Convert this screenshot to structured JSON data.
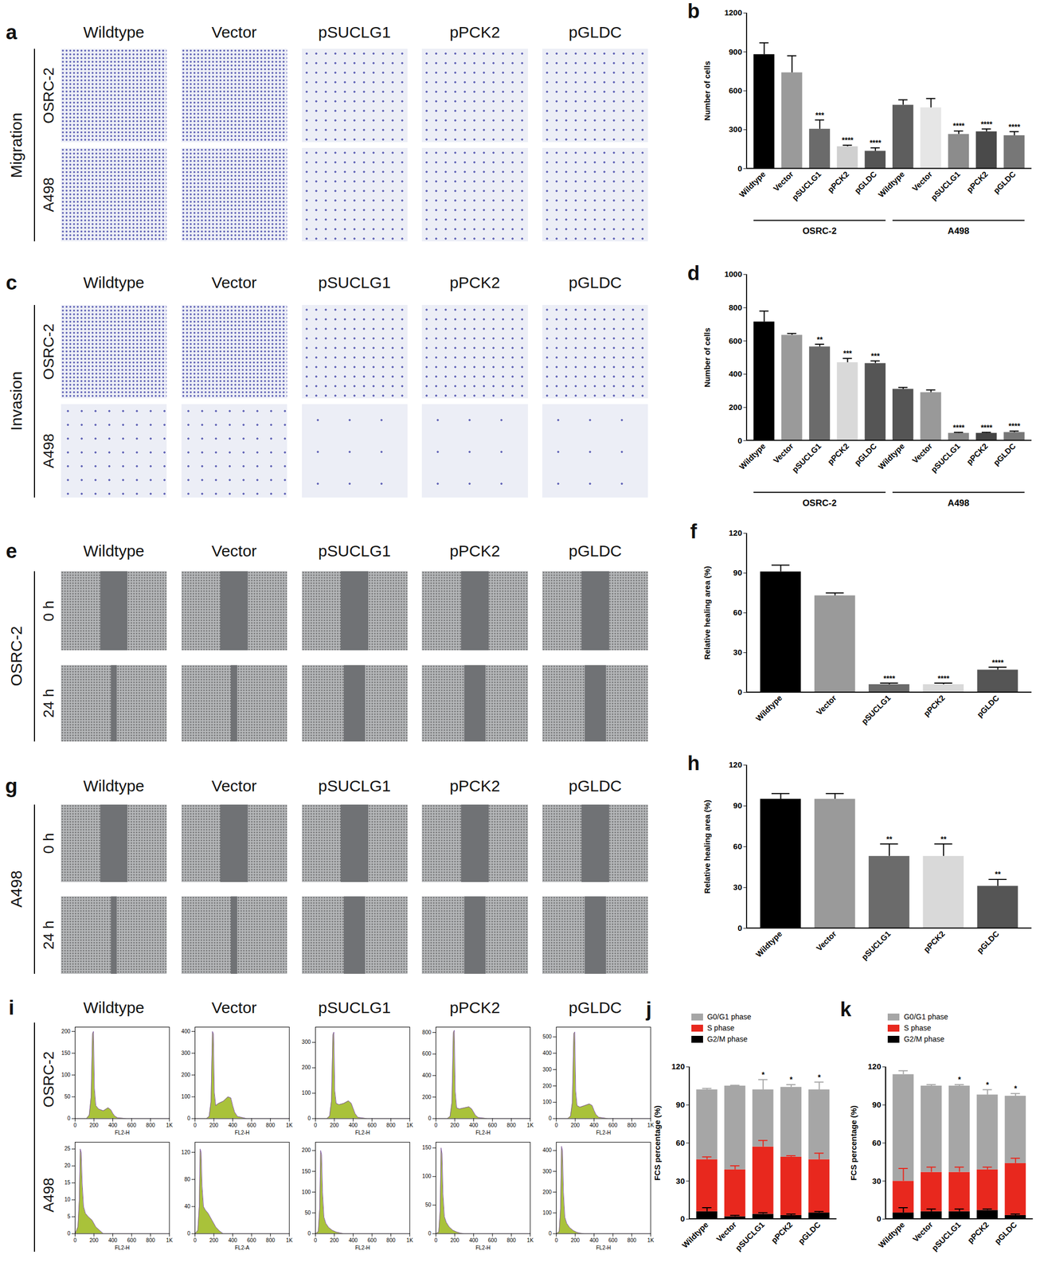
{
  "image_grids": [
    {
      "label": "a",
      "type": "stain",
      "side_label": "Migration",
      "columns": [
        "Wildtype",
        "Vector",
        "pSUCLG1",
        "pPCK2",
        "pGLDC"
      ],
      "rows": [
        "OSRC-2",
        "A498"
      ]
    },
    {
      "label": "c",
      "type": "stain",
      "side_label": "Invasion",
      "columns": [
        "Wildtype",
        "Vector",
        "pSUCLG1",
        "pPCK2",
        "pGLDC"
      ],
      "rows": [
        "OSRC-2",
        "A498"
      ]
    },
    {
      "label": "e",
      "type": "scratch",
      "side_label": "OSRC-2",
      "columns": [
        "Wildtype",
        "Vector",
        "pSUCLG1",
        "pPCK2",
        "pGLDC"
      ],
      "rows": [
        "0 h",
        "24 h"
      ]
    },
    {
      "label": "g",
      "type": "scratch",
      "side_label": "A498",
      "columns": [
        "Wildtype",
        "Vector",
        "pSUCLG1",
        "pPCK2",
        "pGLDC"
      ],
      "rows": [
        "0 h",
        "24 h"
      ]
    }
  ],
  "histogram_grid": {
    "label": "i",
    "columns": [
      "Wildtype",
      "Vector",
      "pSUCLG1",
      "pPCK2",
      "pGLDC"
    ],
    "rows": [
      "OSRC-2",
      "A498"
    ],
    "charts": [
      {
        "type": "area",
        "x_label": "FL2-H",
        "color": "#a9c23a",
        "x": [
          0,
          120,
          150,
          170,
          185,
          195,
          205,
          220,
          250,
          300,
          350,
          380,
          400,
          420,
          450,
          550,
          1000
        ],
        "values": [
          0,
          0,
          8,
          50,
          195,
          200,
          70,
          30,
          22,
          18,
          25,
          20,
          12,
          6,
          2,
          0,
          0
        ],
        "xlim": [
          0,
          1000
        ],
        "xticks": [
          0,
          200,
          400,
          600,
          800,
          {
            "value": 1000,
            "label": "1K"
          }
        ],
        "ylim": [
          0,
          210
        ],
        "yticks": [
          0,
          50,
          100,
          150,
          200
        ]
      },
      {
        "type": "area",
        "x_label": "FL2-H",
        "color": "#a9c23a",
        "x": [
          0,
          120,
          150,
          170,
          185,
          195,
          205,
          220,
          250,
          300,
          350,
          380,
          400,
          420,
          450,
          550,
          1000
        ],
        "values": [
          0,
          0,
          10,
          80,
          400,
          390,
          120,
          60,
          70,
          80,
          100,
          95,
          60,
          30,
          10,
          0,
          0
        ],
        "xlim": [
          0,
          1000
        ],
        "xticks": [
          0,
          200,
          400,
          600,
          800,
          {
            "value": 1000,
            "label": "1K"
          }
        ],
        "ylim": [
          0,
          420
        ],
        "yticks": [
          0,
          100,
          200,
          300,
          400
        ]
      },
      {
        "type": "area",
        "x_label": "FL2-H",
        "color": "#a9c23a",
        "x": [
          0,
          120,
          150,
          170,
          185,
          195,
          205,
          220,
          250,
          300,
          350,
          380,
          400,
          420,
          450,
          550,
          1000
        ],
        "values": [
          0,
          0,
          10,
          70,
          330,
          340,
          110,
          60,
          55,
          60,
          70,
          60,
          40,
          20,
          5,
          0,
          0
        ],
        "xlim": [
          0,
          1000
        ],
        "xticks": [
          0,
          200,
          400,
          600,
          800,
          {
            "value": 1000,
            "label": "1K"
          }
        ],
        "ylim": [
          0,
          360
        ],
        "yticks": [
          0,
          100,
          200,
          300
        ]
      },
      {
        "type": "area",
        "x_label": "FL2-H",
        "color": "#a9c23a",
        "x": [
          0,
          120,
          150,
          170,
          185,
          195,
          205,
          220,
          250,
          300,
          350,
          380,
          400,
          420,
          450,
          550,
          1000
        ],
        "values": [
          0,
          0,
          20,
          150,
          800,
          820,
          250,
          100,
          90,
          100,
          110,
          90,
          60,
          30,
          10,
          0,
          0
        ],
        "xlim": [
          0,
          1000
        ],
        "xticks": [
          0,
          200,
          400,
          600,
          800,
          {
            "value": 1000,
            "label": "1K"
          }
        ],
        "ylim": [
          0,
          850
        ],
        "yticks": [
          0,
          200,
          400,
          600,
          800
        ]
      },
      {
        "type": "area",
        "x_label": "FL2-H",
        "color": "#a9c23a",
        "x": [
          0,
          120,
          150,
          170,
          185,
          195,
          205,
          220,
          250,
          300,
          350,
          380,
          400,
          420,
          450,
          550,
          1000
        ],
        "values": [
          0,
          0,
          15,
          100,
          520,
          530,
          170,
          80,
          70,
          80,
          90,
          80,
          50,
          25,
          8,
          0,
          0
        ],
        "xlim": [
          0,
          1000
        ],
        "xticks": [
          0,
          200,
          400,
          600,
          800,
          {
            "value": 1000,
            "label": "1K"
          }
        ],
        "ylim": [
          0,
          560
        ],
        "yticks": [
          0,
          100,
          200,
          300,
          400,
          500
        ]
      },
      {
        "type": "area",
        "x_label": "FL2-H",
        "color": "#a9c23a",
        "x": [
          0,
          30,
          45,
          55,
          65,
          75,
          90,
          110,
          140,
          180,
          220,
          260,
          300,
          1000
        ],
        "values": [
          0,
          2,
          10,
          25,
          24,
          15,
          8,
          6,
          5,
          4,
          2,
          1,
          0,
          0
        ],
        "xlim": [
          0,
          1000
        ],
        "xticks": [
          0,
          200,
          400,
          600,
          800,
          {
            "value": 1000,
            "label": "1K"
          }
        ],
        "ylim": [
          0,
          27
        ],
        "yticks": [
          0,
          5,
          10,
          15,
          20,
          25
        ]
      },
      {
        "type": "area",
        "x_label": "FL2-A",
        "color": "#a9c23a",
        "x": [
          0,
          30,
          45,
          55,
          65,
          75,
          90,
          110,
          140,
          180,
          220,
          260,
          300,
          1000
        ],
        "values": [
          0,
          5,
          40,
          125,
          120,
          70,
          40,
          35,
          30,
          20,
          10,
          4,
          0,
          0
        ],
        "xlim": [
          0,
          1000
        ],
        "xticks": [
          0,
          200,
          400,
          600,
          800,
          {
            "value": 1000,
            "label": "1K"
          }
        ],
        "ylim": [
          0,
          135
        ],
        "yticks": [
          0,
          40,
          80,
          120
        ]
      },
      {
        "type": "area",
        "x_label": "FL2-H",
        "color": "#a9c23a",
        "x": [
          0,
          30,
          45,
          55,
          65,
          75,
          90,
          110,
          140,
          180,
          220,
          260,
          300,
          1000
        ],
        "values": [
          0,
          5,
          60,
          200,
          190,
          100,
          40,
          25,
          15,
          8,
          4,
          2,
          0,
          0
        ],
        "xlim": [
          0,
          1000
        ],
        "xticks": [
          0,
          200,
          400,
          600,
          800,
          {
            "value": 1000,
            "label": "1K"
          }
        ],
        "ylim": [
          0,
          220
        ],
        "yticks": [
          0,
          50,
          100,
          150,
          200
        ]
      },
      {
        "type": "area",
        "x_label": "FL2-H",
        "color": "#a9c23a",
        "x": [
          0,
          30,
          45,
          55,
          65,
          75,
          90,
          110,
          140,
          180,
          220,
          260,
          300,
          1000
        ],
        "values": [
          0,
          3,
          40,
          150,
          140,
          70,
          30,
          20,
          12,
          6,
          3,
          1,
          0,
          0
        ],
        "xlim": [
          0,
          1000
        ],
        "xticks": [
          0,
          200,
          400,
          600,
          800,
          {
            "value": 1000,
            "label": "1K"
          }
        ],
        "ylim": [
          0,
          160
        ],
        "yticks": [
          0,
          50,
          100,
          150
        ]
      },
      {
        "type": "area",
        "x_label": "FL2-H",
        "color": "#a9c23a",
        "x": [
          0,
          30,
          45,
          55,
          65,
          75,
          90,
          110,
          140,
          180,
          220,
          260,
          300,
          1000
        ],
        "values": [
          0,
          10,
          120,
          420,
          400,
          200,
          80,
          50,
          30,
          15,
          6,
          2,
          0,
          0
        ],
        "xlim": [
          0,
          1000
        ],
        "xticks": [
          0,
          200,
          400,
          600,
          800,
          {
            "value": 1000,
            "label": "1K"
          }
        ],
        "ylim": [
          0,
          440
        ],
        "yticks": [
          0,
          100,
          200,
          300,
          400
        ]
      }
    ]
  },
  "chart_data": [
    {
      "type": "bar",
      "title": "b",
      "y_label": "Number of cells",
      "categories": [
        "Wildtype",
        "Vector",
        "pSUCLG1",
        "pPCK2",
        "pGLDC",
        "Wildtype",
        "Vector",
        "pSUCLG1",
        "pPCK2",
        "pGLDC"
      ],
      "groups": [
        "OSRC-2",
        "OSRC-2",
        "OSRC-2",
        "OSRC-2",
        "OSRC-2",
        "A498",
        "A498",
        "A498",
        "A498",
        "A498"
      ],
      "values": [
        880,
        740,
        305,
        170,
        135,
        490,
        470,
        265,
        285,
        255
      ],
      "errors": [
        90,
        130,
        70,
        10,
        25,
        40,
        70,
        25,
        20,
        30
      ],
      "significance": [
        null,
        null,
        "***",
        "****",
        "****",
        null,
        null,
        "****",
        "****",
        "****"
      ],
      "colors": [
        "#000000",
        "#9a9a9a",
        "#6b6b6b",
        "#d0d0d0",
        "#555555",
        "#5e5e5e",
        "#e6e6e6",
        "#8c8c8c",
        "#4a4a4a",
        "#777777"
      ],
      "ylim": [
        0,
        1200
      ],
      "yticks": [
        0,
        300,
        600,
        900,
        1200
      ]
    },
    {
      "type": "bar",
      "title": "d",
      "y_label": "Number of cells",
      "categories": [
        "Wildtype",
        "Vector",
        "pSUCLG1",
        "pPCK2",
        "pGLDC",
        "Wildtype",
        "Vector",
        "pSUCLG1",
        "pPCK2",
        "pGLDC"
      ],
      "groups": [
        "OSRC-2",
        "OSRC-2",
        "OSRC-2",
        "OSRC-2",
        "OSRC-2",
        "A498",
        "A498",
        "A498",
        "A498",
        "A498"
      ],
      "values": [
        715,
        635,
        565,
        470,
        465,
        310,
        290,
        45,
        45,
        50
      ],
      "errors": [
        65,
        10,
        15,
        25,
        15,
        10,
        15,
        5,
        5,
        8
      ],
      "significance": [
        null,
        null,
        "**",
        "***",
        "***",
        null,
        null,
        "****",
        "****",
        "****"
      ],
      "colors": [
        "#000000",
        "#9a9a9a",
        "#6b6b6b",
        "#d9d9d9",
        "#555555",
        "#555555",
        "#999999",
        "#888888",
        "#444444",
        "#777777"
      ],
      "ylim": [
        0,
        1000
      ],
      "yticks": [
        0,
        200,
        400,
        600,
        800,
        1000
      ]
    },
    {
      "type": "bar",
      "title": "f",
      "y_label": "Relative healing area (%)",
      "categories": [
        "Wildtype",
        "Vector",
        "pSUCLG1",
        "pPCK2",
        "pGLDC"
      ],
      "values": [
        91,
        73,
        6,
        6,
        17
      ],
      "errors": [
        5,
        2,
        1,
        1,
        2
      ],
      "significance": [
        null,
        null,
        "****",
        "****",
        "****"
      ],
      "colors": [
        "#000000",
        "#9a9a9a",
        "#6b6b6b",
        "#d9d9d9",
        "#555555"
      ],
      "ylim": [
        0,
        120
      ],
      "yticks": [
        0,
        30,
        60,
        90,
        120
      ]
    },
    {
      "type": "bar",
      "title": "h",
      "y_label": "Relative healing area (%)",
      "categories": [
        "Wildtype",
        "Vector",
        "pSUCLG1",
        "pPCK2",
        "pGLDC"
      ],
      "values": [
        95,
        95,
        53,
        53,
        31
      ],
      "errors": [
        4,
        4,
        9,
        9,
        5
      ],
      "significance": [
        null,
        null,
        "**",
        "**",
        "**"
      ],
      "colors": [
        "#000000",
        "#9a9a9a",
        "#6b6b6b",
        "#d9d9d9",
        "#555555"
      ],
      "ylim": [
        0,
        120
      ],
      "yticks": [
        0,
        30,
        60,
        90,
        120
      ]
    },
    {
      "type": "bar",
      "stacked": true,
      "title": "j",
      "y_label": "FCS percentage (%)",
      "legend": "top-left",
      "categories": [
        "Wildtype",
        "Vector",
        "pSUCLG1",
        "pPCK2",
        "pGLDC"
      ],
      "series": [
        {
          "name": "G0/G1 phase",
          "color": "#a6a6a6",
          "values": [
            55,
            66,
            45,
            55,
            55
          ],
          "errors": [
            1,
            0.5,
            8,
            2,
            6
          ]
        },
        {
          "name": "S phase",
          "color": "#e8281e",
          "values": [
            41,
            37,
            53,
            46,
            42
          ],
          "errors": [
            2,
            3,
            5,
            1,
            5
          ]
        },
        {
          "name": "G2/M phase",
          "color": "#000000",
          "values": [
            6,
            2,
            4,
            3,
            5
          ],
          "errors": [
            3,
            1,
            1,
            1,
            1
          ]
        }
      ],
      "significance": [
        null,
        null,
        "*",
        "*",
        "*"
      ],
      "ylim": [
        0,
        120
      ],
      "yticks": [
        0,
        30,
        60,
        90,
        120
      ]
    },
    {
      "type": "bar",
      "stacked": true,
      "title": "k",
      "y_label": "FCS percentage (%)",
      "legend": "top-left",
      "categories": [
        "Wildtype",
        "Vector",
        "pSUCLG1",
        "pPCK2",
        "pGLDC"
      ],
      "series": [
        {
          "name": "G0/G1 phase",
          "color": "#a6a6a6",
          "values": [
            84,
            68,
            68,
            59,
            53
          ],
          "errors": [
            3,
            1,
            1,
            4,
            2
          ]
        },
        {
          "name": "S phase",
          "color": "#e8281e",
          "values": [
            25,
            31,
            31,
            32,
            41
          ],
          "errors": [
            10,
            4,
            4,
            2,
            4
          ]
        },
        {
          "name": "G2/M phase",
          "color": "#000000",
          "values": [
            5,
            6,
            6,
            7,
            3
          ],
          "errors": [
            4,
            2,
            2,
            1,
            1
          ]
        }
      ],
      "significance": [
        null,
        null,
        "*",
        "*",
        "*"
      ],
      "ylim": [
        0,
        120
      ],
      "yticks": [
        0,
        30,
        60,
        90,
        120
      ]
    }
  ]
}
